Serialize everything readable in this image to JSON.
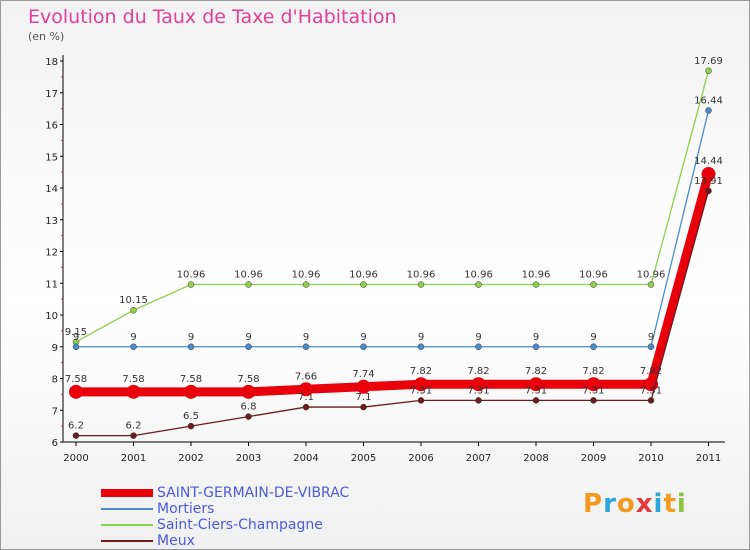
{
  "chart_title": "Evolution du Taux de Taxe d'Habitation",
  "unit_label": "(en %)",
  "logo": {
    "text": "Proxiti",
    "letters": [
      {
        "ch": "P",
        "color": "#f39a1e"
      },
      {
        "ch": "r",
        "color": "#2aa6d8"
      },
      {
        "ch": "o",
        "color": "#f39a1e"
      },
      {
        "ch": "x",
        "color": "#e23a3a"
      },
      {
        "ch": "i",
        "color": "#2aa6d8"
      },
      {
        "ch": "t",
        "color": "#f39a1e"
      },
      {
        "ch": "i",
        "color": "#8cc63f"
      }
    ]
  },
  "chart_data": {
    "type": "line",
    "x": [
      "2000",
      "2001",
      "2002",
      "2003",
      "2004",
      "2005",
      "2006",
      "2007",
      "2008",
      "2009",
      "2010",
      "2011"
    ],
    "ylim": [
      6,
      18
    ],
    "yticks": [
      6,
      7,
      8,
      9,
      10,
      11,
      12,
      13,
      14,
      15,
      16,
      17,
      18
    ],
    "grid": false,
    "legend_position": "bottom-left",
    "series": [
      {
        "name": "SAINT-GERMAIN-DE-VIBRAC",
        "color": "#e8000b",
        "emphasis": true,
        "values": [
          7.58,
          7.58,
          7.58,
          7.58,
          7.66,
          7.74,
          7.82,
          7.82,
          7.82,
          7.82,
          7.82,
          14.44
        ],
        "labels": [
          "7.58",
          "7.58",
          "7.58",
          "7.58",
          "7.66",
          "7.74",
          "7.82",
          "7.82",
          "7.82",
          "7.82",
          "7.82",
          "14.44"
        ]
      },
      {
        "name": "Mortiers",
        "color": "#4a8ccb",
        "values": [
          9,
          9,
          9,
          9,
          9,
          9,
          9,
          9,
          9,
          9,
          9,
          16.44
        ],
        "labels": [
          "9",
          "9",
          "9",
          "9",
          "9",
          "9",
          "9",
          "9",
          "9",
          "9",
          "9",
          "16.44"
        ]
      },
      {
        "name": "Saint-Ciers-Champagne",
        "color": "#8ed04a",
        "values": [
          9.15,
          10.15,
          10.96,
          10.96,
          10.96,
          10.96,
          10.96,
          10.96,
          10.96,
          10.96,
          10.96,
          17.69
        ],
        "labels": [
          "9.15",
          "10.15",
          "10.96",
          "10.96",
          "10.96",
          "10.96",
          "10.96",
          "10.96",
          "10.96",
          "10.96",
          "10.96",
          "17.69"
        ]
      },
      {
        "name": "Meux",
        "color": "#6b1a1e",
        "values": [
          6.2,
          6.2,
          6.5,
          6.8,
          7.1,
          7.1,
          7.31,
          7.31,
          7.31,
          7.31,
          7.31,
          13.91
        ],
        "labels": [
          "6.2",
          "6.2",
          "6.5",
          "6.8",
          "7.1",
          "7.1",
          "7.31",
          "7.31",
          "7.31",
          "7.31",
          "7.31",
          "13.91"
        ]
      }
    ]
  }
}
